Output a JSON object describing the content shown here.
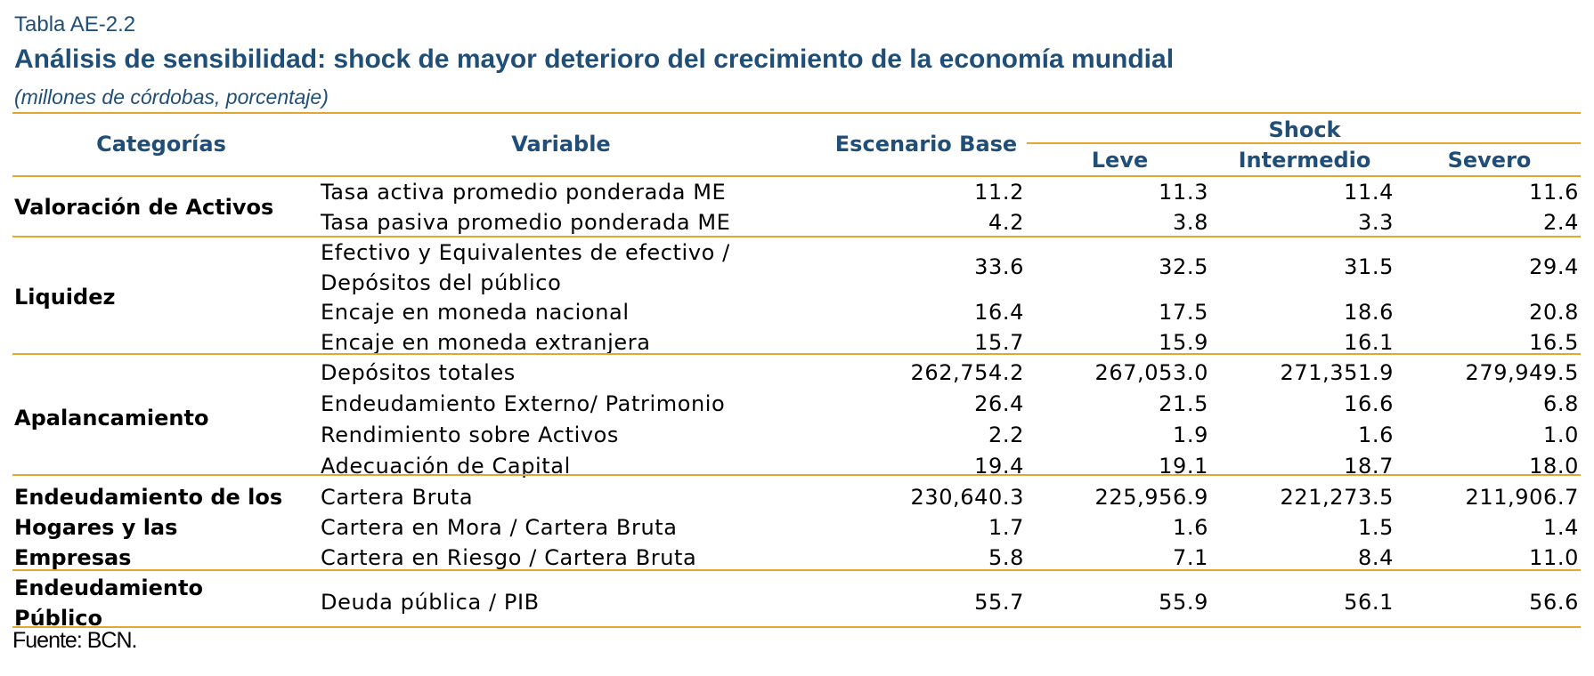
{
  "doc": {
    "table_number": "Tabla AE-2.2",
    "title": "Análisis de sensibilidad: shock de mayor deterioro del crecimiento de la economía mundial",
    "subtitle": "(millones de córdobas, porcentaje)",
    "source": "Fuente: BCN."
  },
  "headers": {
    "categorias": "Categorías",
    "variable": "Variable",
    "base": "Escenario Base",
    "shock": "Shock",
    "leve": "Leve",
    "intermedio": "Intermedio",
    "severo": "Severo"
  },
  "groups": [
    {
      "category": [
        "Valoración de Activos"
      ]
    },
    {
      "category": [
        "Liquidez"
      ]
    },
    {
      "category": [
        "Apalancamiento"
      ]
    },
    {
      "category": [
        "Endeudamiento de los",
        "Hogares y las",
        "Empresas"
      ]
    },
    {
      "category": [
        "Endeudamiento",
        "Público"
      ]
    }
  ],
  "rows": [
    {
      "variable": [
        "Tasa activa promedio ponderada ME"
      ],
      "values": [
        "11.2",
        "11.3",
        "11.4",
        "11.6"
      ]
    },
    {
      "variable": [
        "Tasa pasiva promedio ponderada ME"
      ],
      "values": [
        "4.2",
        "3.8",
        "3.3",
        "2.4"
      ]
    },
    {
      "variable": [
        "Efectivo y Equivalentes de efectivo /",
        "Depósitos del público"
      ],
      "values": [
        "33.6",
        "32.5",
        "31.5",
        "29.4"
      ]
    },
    {
      "variable": [
        "Encaje en moneda nacional"
      ],
      "values": [
        "16.4",
        "17.5",
        "18.6",
        "20.8"
      ]
    },
    {
      "variable": [
        "Encaje en moneda extranjera"
      ],
      "values": [
        "15.7",
        "15.9",
        "16.1",
        "16.5"
      ]
    },
    {
      "variable": [
        "Depósitos totales"
      ],
      "values": [
        "262,754.2",
        "267,053.0",
        "271,351.9",
        "279,949.5"
      ]
    },
    {
      "variable": [
        "Endeudamiento Externo/ Patrimonio"
      ],
      "values": [
        "26.4",
        "21.5",
        "16.6",
        "6.8"
      ]
    },
    {
      "variable": [
        "Rendimiento sobre Activos"
      ],
      "values": [
        "2.2",
        "1.9",
        "1.6",
        "1.0"
      ]
    },
    {
      "variable": [
        "Adecuación de Capital"
      ],
      "values": [
        "19.4",
        "19.1",
        "18.7",
        "18.0"
      ]
    },
    {
      "variable": [
        "Cartera Bruta"
      ],
      "values": [
        "230,640.3",
        "225,956.9",
        "221,273.5",
        "211,906.7"
      ]
    },
    {
      "variable": [
        "Cartera en Mora / Cartera Bruta"
      ],
      "values": [
        "1.7",
        "1.6",
        "1.5",
        "1.4"
      ]
    },
    {
      "variable": [
        "Cartera en Riesgo / Cartera Bruta"
      ],
      "values": [
        "5.8",
        "7.1",
        "8.4",
        "11.0"
      ]
    },
    {
      "variable": [
        "Deuda pública / PIB"
      ],
      "values": [
        "55.7",
        "55.9",
        "56.1",
        "56.6"
      ]
    }
  ],
  "colors": {
    "title": "#1f4e79",
    "rule": "#e3a72f"
  }
}
